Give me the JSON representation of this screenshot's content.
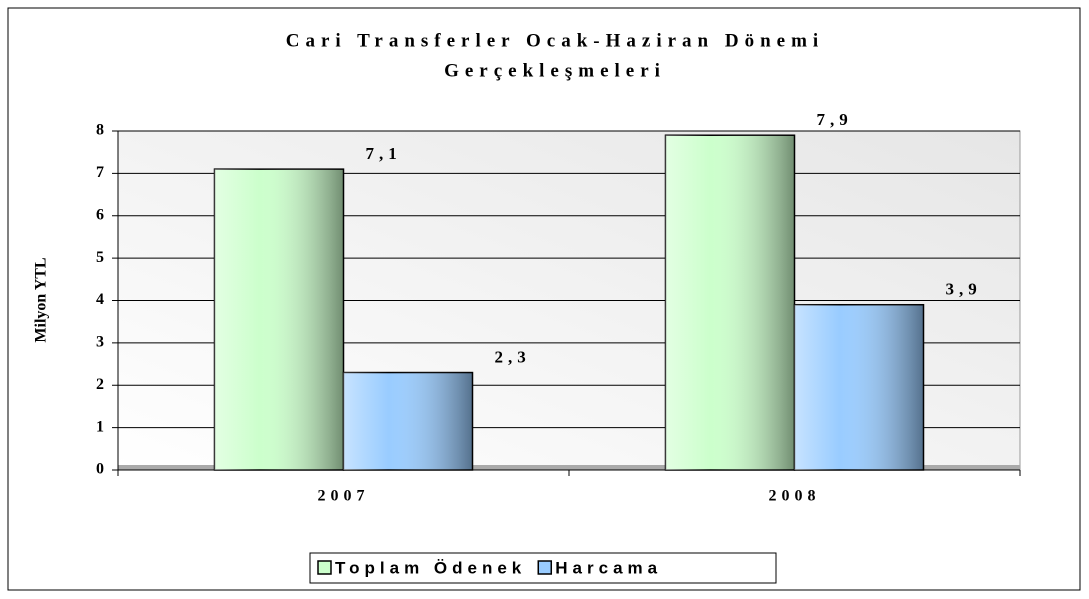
{
  "chart_data": {
    "type": "bar",
    "title": [
      "Cari Transferler Ocak-Haziran Dönemi",
      "Gerçekleşmeleri"
    ],
    "y_axis_label": "Milyon YTL",
    "categories": [
      "2007",
      "2008"
    ],
    "series": [
      {
        "name": "Toplam Ödenek",
        "color": "#ccffcc",
        "values": [
          7.1,
          7.9
        ],
        "value_labels": [
          "7,1",
          "7,9"
        ]
      },
      {
        "name": "Harcama",
        "color": "#99ccff",
        "values": [
          2.3,
          3.9
        ],
        "value_labels": [
          "2,3",
          "3,9"
        ]
      }
    ],
    "ylim": [
      0,
      8
    ],
    "yticks": [
      0,
      1,
      2,
      3,
      4,
      5,
      6,
      7,
      8
    ],
    "grid": true,
    "legend": "bottom"
  }
}
